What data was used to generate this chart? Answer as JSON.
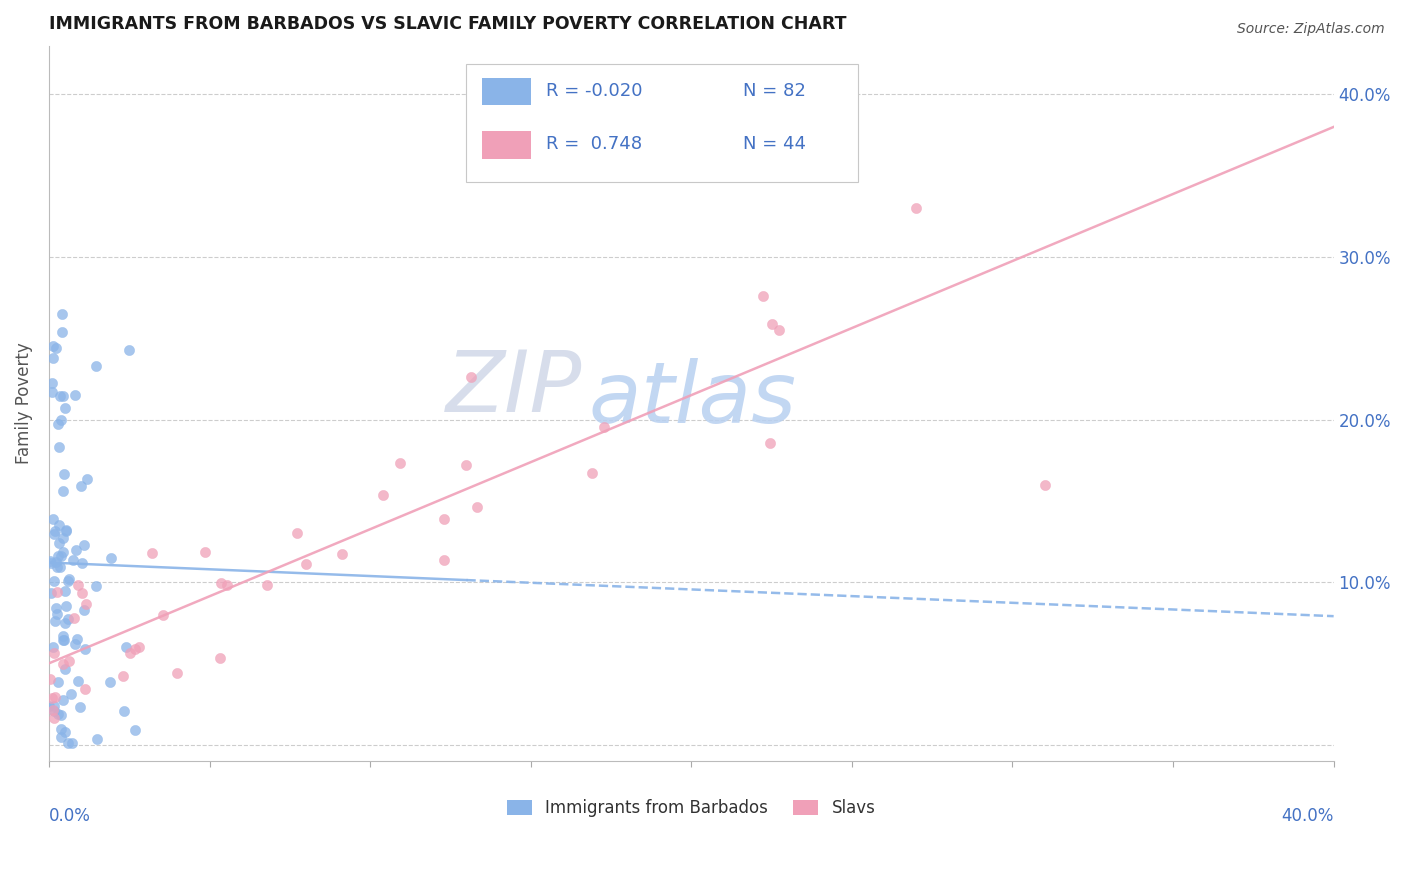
{
  "title": "IMMIGRANTS FROM BARBADOS VS SLAVIC FAMILY POVERTY CORRELATION CHART",
  "source": "Source: ZipAtlas.com",
  "ylabel": "Family Poverty",
  "y_ticks": [
    0.0,
    0.1,
    0.2,
    0.3,
    0.4
  ],
  "y_tick_labels": [
    "",
    "10.0%",
    "20.0%",
    "30.0%",
    "40.0%"
  ],
  "x_lim": [
    0.0,
    0.4
  ],
  "y_lim": [
    -0.01,
    0.43
  ],
  "series1_name": "Immigrants from Barbados",
  "series1_color": "#8ab4e8",
  "series2_name": "Slavs",
  "series2_color": "#f0a0b8",
  "watermark_zip": "ZIP",
  "watermark_atlas": "atlas",
  "background_color": "#ffffff",
  "grid_color": "#c8c8c8",
  "title_color": "#1a1a1a",
  "axis_label_color": "#4472c4",
  "tick_label_color": "#4472c4",
  "legend_box_color": "#e8e8e8",
  "source_color": "#555555",
  "ylabel_color": "#555555",
  "blue_line_start_y": 0.112,
  "blue_line_end_y": 0.079,
  "pink_line_start_y": 0.05,
  "pink_line_end_y": 0.38
}
